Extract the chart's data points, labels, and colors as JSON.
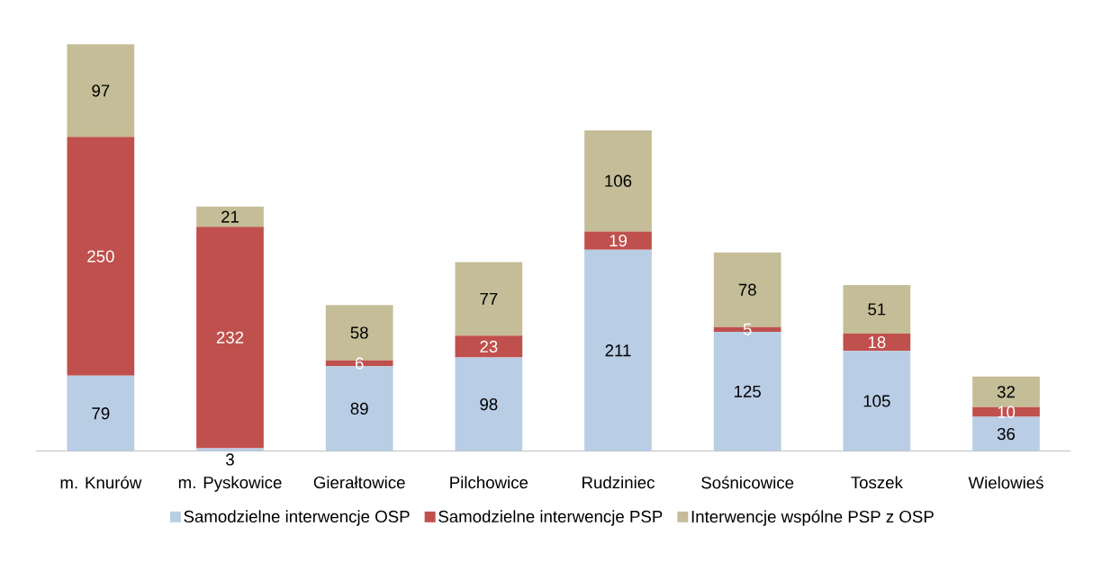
{
  "chart_data": {
    "type": "bar",
    "stacked": true,
    "data_labels": true,
    "legend": "bottom",
    "categories": [
      "m. Knurów",
      "m. Pyskowice",
      "Gierałtowice",
      "Pilchowice",
      "Rudziniec",
      "Sośnicowice",
      "Toszek",
      "Wielowieś"
    ],
    "series": [
      {
        "name": "Samodzielne interwencje OSP",
        "color": "#b9cde5",
        "values": [
          79,
          3,
          89,
          98,
          211,
          125,
          105,
          36
        ]
      },
      {
        "name": "Samodzielne interwencje PSP",
        "color": "#c0504d",
        "values": [
          250,
          232,
          6,
          23,
          19,
          5,
          18,
          10
        ]
      },
      {
        "name": "Interwencje wspólne PSP z OSP",
        "color": "#c4bd97",
        "values": [
          97,
          21,
          58,
          77,
          106,
          78,
          51,
          32
        ]
      }
    ]
  }
}
